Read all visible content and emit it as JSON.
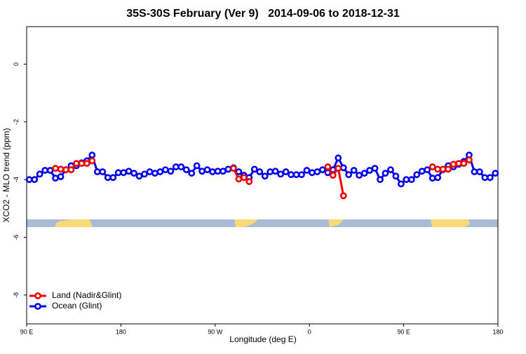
{
  "chart_data": {
    "type": "line",
    "title": "35S-30S February (Ver 9)   2014-09-06 to 2018-12-31",
    "x_label": "Longitude (deg E)",
    "y_label": "XCO2 - MLO trend (ppm)",
    "xlim": [
      90,
      540
    ],
    "ylim": [
      -9,
      1.3
    ],
    "xticks": [
      {
        "value": 90,
        "label": "90 E"
      },
      180,
      {
        "value": 270,
        "label": "90 W"
      },
      {
        "value": 360,
        "label": "0"
      },
      {
        "value": 450,
        "label": "90 E"
      },
      {
        "value": 540,
        "label": "180"
      }
    ],
    "yticks": [
      0,
      -2,
      -4,
      -6,
      -8
    ],
    "legend": "bottom-left",
    "x": [
      92.5,
      97.5,
      102.5,
      107.5,
      112.5,
      117.5,
      122.5,
      127.5,
      132.5,
      137.5,
      142.5,
      147.5,
      152.5,
      157.5,
      162.5,
      167.5,
      172.5,
      177.5,
      182.5,
      187.5,
      192.5,
      197.5,
      202.5,
      207.5,
      212.5,
      217.5,
      222.5,
      227.5,
      232.5,
      237.5,
      242.5,
      247.5,
      252.5,
      257.5,
      262.5,
      267.5,
      272.5,
      277.5,
      282.5,
      287.5,
      292.5,
      297.5,
      302.5,
      307.5,
      312.5,
      317.5,
      322.5,
      327.5,
      332.5,
      337.5,
      342.5,
      347.5,
      352.5,
      357.5,
      362.5,
      367.5,
      372.5,
      377.5,
      382.5,
      387.5,
      392.5,
      397.5,
      402.5,
      407.5,
      412.5,
      417.5,
      422.5,
      427.5,
      432.5,
      437.5,
      442.5,
      447.5,
      452.5,
      457.5,
      462.5,
      467.5,
      472.5,
      477.5,
      482.5,
      487.5,
      492.5,
      497.5,
      502.5,
      507.5,
      512.5,
      517.5,
      522.5,
      527.5,
      532.5,
      537.5
    ],
    "series": [
      {
        "name": "Ocean (Glint)",
        "color": "#0000ee",
        "values": [
          -4.0,
          -4.0,
          -3.81,
          -3.68,
          -3.68,
          -3.95,
          -3.9,
          -3.66,
          -3.52,
          -3.52,
          -3.42,
          -3.35,
          -3.15,
          -3.73,
          -3.73,
          -3.93,
          -3.93,
          -3.76,
          -3.76,
          -3.71,
          -3.78,
          -3.88,
          -3.81,
          -3.73,
          -3.78,
          -3.73,
          -3.66,
          -3.71,
          -3.56,
          -3.56,
          -3.66,
          -3.78,
          -3.52,
          -3.71,
          -3.66,
          -3.73,
          -3.71,
          -3.71,
          -3.64,
          -3.59,
          -3.73,
          -3.85,
          -3.93,
          -3.64,
          -3.73,
          -3.88,
          -3.73,
          -3.71,
          -3.81,
          -3.73,
          -3.83,
          -3.83,
          -3.83,
          -3.68,
          -3.76,
          -3.73,
          -3.66,
          -3.76,
          -3.66,
          -3.25,
          -3.59,
          -3.83,
          -3.68,
          -3.85,
          -3.78,
          -3.68,
          -3.61,
          -4.0,
          -3.78,
          -3.66,
          -3.88,
          -4.15,
          -4.0,
          -4.0,
          -3.83,
          -3.71,
          -3.66,
          -3.95,
          -3.93,
          -3.66,
          -3.52,
          -3.56,
          -3.47,
          -3.37,
          -3.15,
          -3.73,
          -3.73,
          -3.93,
          -3.93,
          -3.78
        ]
      },
      {
        "name": "Land (Nadir&Glint)",
        "color": "#ee0000",
        "values": [
          null,
          null,
          null,
          null,
          null,
          -3.61,
          -3.64,
          -3.66,
          -3.66,
          -3.44,
          -3.44,
          -3.44,
          -3.35,
          null,
          null,
          null,
          null,
          null,
          null,
          null,
          null,
          null,
          null,
          null,
          null,
          null,
          null,
          null,
          null,
          null,
          null,
          null,
          null,
          null,
          null,
          null,
          null,
          null,
          null,
          -3.61,
          -3.98,
          -3.93,
          -4.07,
          null,
          null,
          null,
          null,
          null,
          null,
          null,
          null,
          null,
          null,
          null,
          null,
          null,
          null,
          -3.56,
          -3.85,
          -3.61,
          -4.56,
          null,
          null,
          null,
          null,
          null,
          null,
          null,
          null,
          null,
          null,
          null,
          null,
          null,
          null,
          null,
          null,
          -3.56,
          -3.64,
          -3.64,
          -3.64,
          -3.47,
          -3.44,
          -3.44,
          -3.32,
          null,
          null,
          null,
          null,
          null
        ]
      }
    ]
  }
}
